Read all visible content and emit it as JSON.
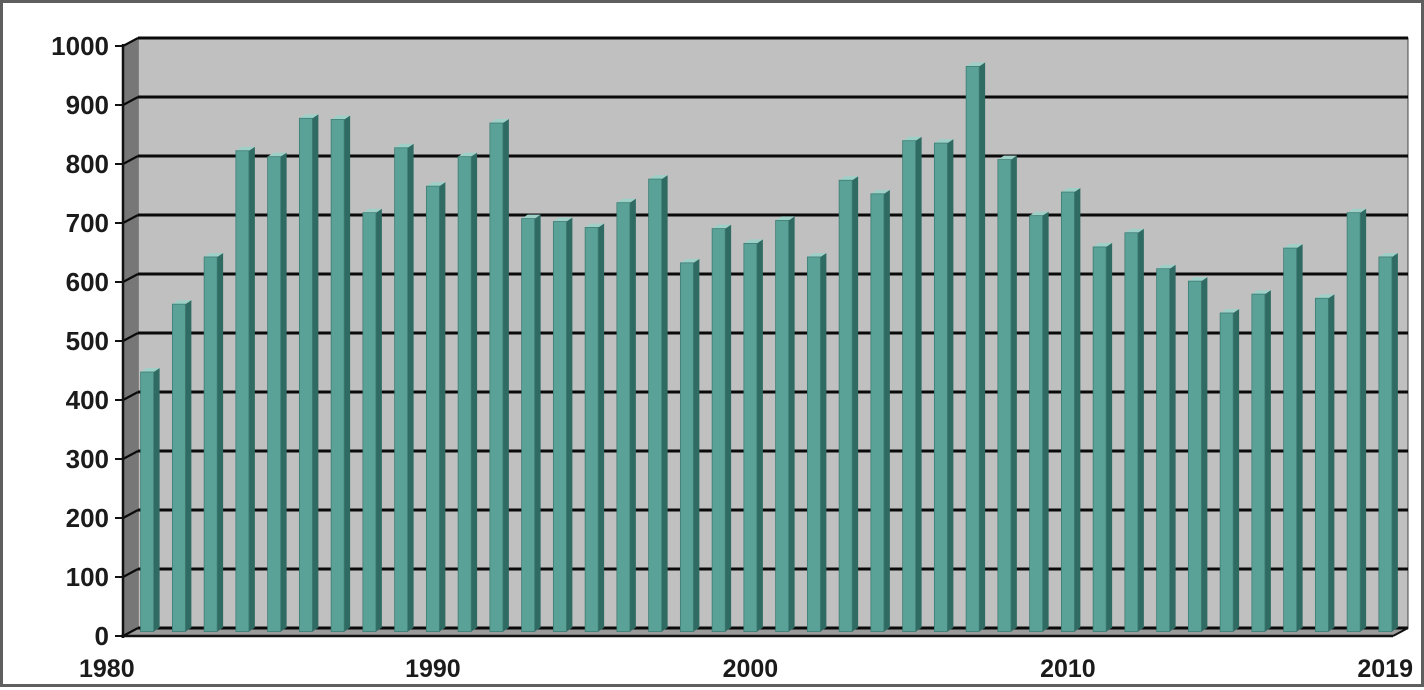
{
  "chart_data": {
    "type": "bar",
    "title": "",
    "xlabel": "",
    "ylabel": "",
    "x": [
      1981,
      1982,
      1983,
      1984,
      1985,
      1986,
      1987,
      1988,
      1989,
      1990,
      1991,
      1992,
      1993,
      1994,
      1995,
      1996,
      1997,
      1998,
      1999,
      2000,
      2001,
      2002,
      2003,
      2004,
      2005,
      2006,
      2007,
      2008,
      2009,
      2010,
      2011,
      2012,
      2013,
      2014,
      2015,
      2016,
      2017,
      2018,
      2019,
      2020
    ],
    "values": [
      440,
      555,
      635,
      815,
      805,
      870,
      868,
      710,
      820,
      755,
      805,
      862,
      700,
      695,
      685,
      727,
      767,
      625,
      683,
      658,
      697,
      635,
      765,
      742,
      832,
      828,
      958,
      800,
      705,
      745,
      652,
      676,
      615,
      594,
      540,
      572,
      650,
      565,
      710,
      635
    ],
    "ylim": [
      0,
      1000
    ],
    "yticks": [
      "0",
      "100",
      "200",
      "300",
      "400",
      "500",
      "600",
      "700",
      "800",
      "900",
      "1000"
    ],
    "xticks": [
      {
        "label": "1980",
        "value": 1980
      },
      {
        "label": "1990",
        "value": 1990
      },
      {
        "label": "2000",
        "value": 2000
      },
      {
        "label": "2010",
        "value": 2010
      },
      {
        "label": "2019",
        "value": 2019
      }
    ],
    "grid": true,
    "legend": "none",
    "colors": {
      "bar_front": "#5aa297",
      "bar_side": "#2f6b63",
      "bar_top": "#9fd0c8",
      "plot_back": "#c0c0c0",
      "wall_side": "#777777",
      "gridline": "#0a0a0a",
      "tick_text": "#1b1b1b"
    }
  }
}
